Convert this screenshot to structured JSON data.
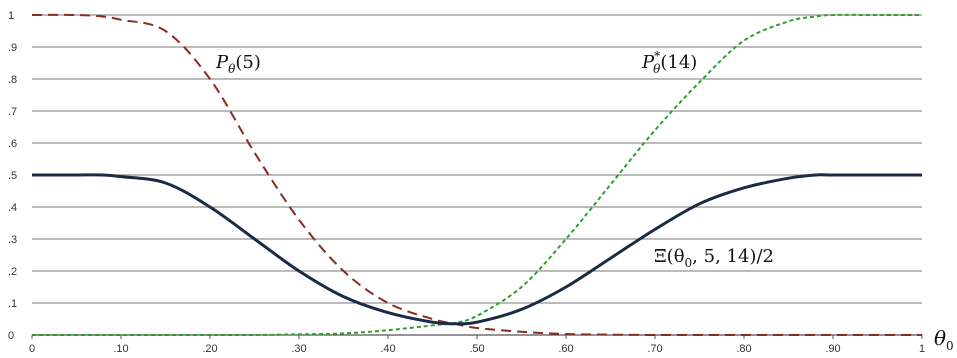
{
  "chart_data": {
    "type": "line",
    "x_tick_labels": [
      "0",
      ".10",
      ".20",
      ".30",
      ".40",
      ".50",
      ".60",
      ".70",
      ".80",
      ".90",
      "1"
    ],
    "y_tick_labels": [
      "0",
      ".1",
      ".2",
      ".3",
      ".4",
      ".5",
      ".6",
      ".7",
      ".8",
      ".9",
      "1"
    ],
    "xlabel": "θ0",
    "xlim": [
      0,
      1.0
    ],
    "ylim": [
      0,
      1
    ],
    "grid": "horizontal",
    "x": [
      0,
      0.05,
      0.08,
      0.1,
      0.15,
      0.2,
      0.25,
      0.3,
      0.35,
      0.4,
      0.45,
      0.475,
      0.5,
      0.55,
      0.6,
      0.65,
      0.7,
      0.75,
      0.8,
      0.85,
      0.88,
      0.9,
      0.95,
      1.0
    ],
    "series": [
      {
        "name": "P_θ(5)",
        "color": "#8B2A22",
        "dash": "dashed",
        "values": [
          1.0,
          1.0,
          0.995,
          0.985,
          0.95,
          0.8,
          0.57,
          0.36,
          0.2,
          0.1,
          0.05,
          0.035,
          0.022,
          0.01,
          0.003,
          0.001,
          0,
          0,
          0,
          0,
          0,
          0,
          0,
          0
        ]
      },
      {
        "name": "P*_θ(14)",
        "color": "#2E9E2E",
        "dash": "dotted",
        "values": [
          0,
          0,
          0,
          0,
          0,
          0,
          0,
          0.002,
          0.005,
          0.015,
          0.03,
          0.038,
          0.06,
          0.15,
          0.3,
          0.47,
          0.64,
          0.79,
          0.92,
          0.98,
          0.995,
          1.0,
          1.0,
          1.0
        ]
      },
      {
        "name": "Ξ(θ0, 5, 14)/2",
        "color": "#1B2A45",
        "dash": "solid",
        "values": [
          0.5,
          0.5,
          0.5,
          0.495,
          0.475,
          0.4,
          0.3,
          0.2,
          0.12,
          0.07,
          0.04,
          0.035,
          0.04,
          0.08,
          0.15,
          0.24,
          0.33,
          0.41,
          0.46,
          0.49,
          0.5,
          0.5,
          0.5,
          0.5
        ]
      }
    ],
    "annotations": {
      "series1": {
        "main": "P",
        "sub": "θ",
        "sup": "",
        "args": "(5)"
      },
      "series2": {
        "main": "P",
        "sub": "θ",
        "sup": "*",
        "args": "(14)"
      },
      "series3": {
        "text": "Ξ(θ",
        "sub": "0",
        "tail": ", 5, 14)/2"
      },
      "xlabel": {
        "main": "θ",
        "sub": "0"
      }
    }
  }
}
